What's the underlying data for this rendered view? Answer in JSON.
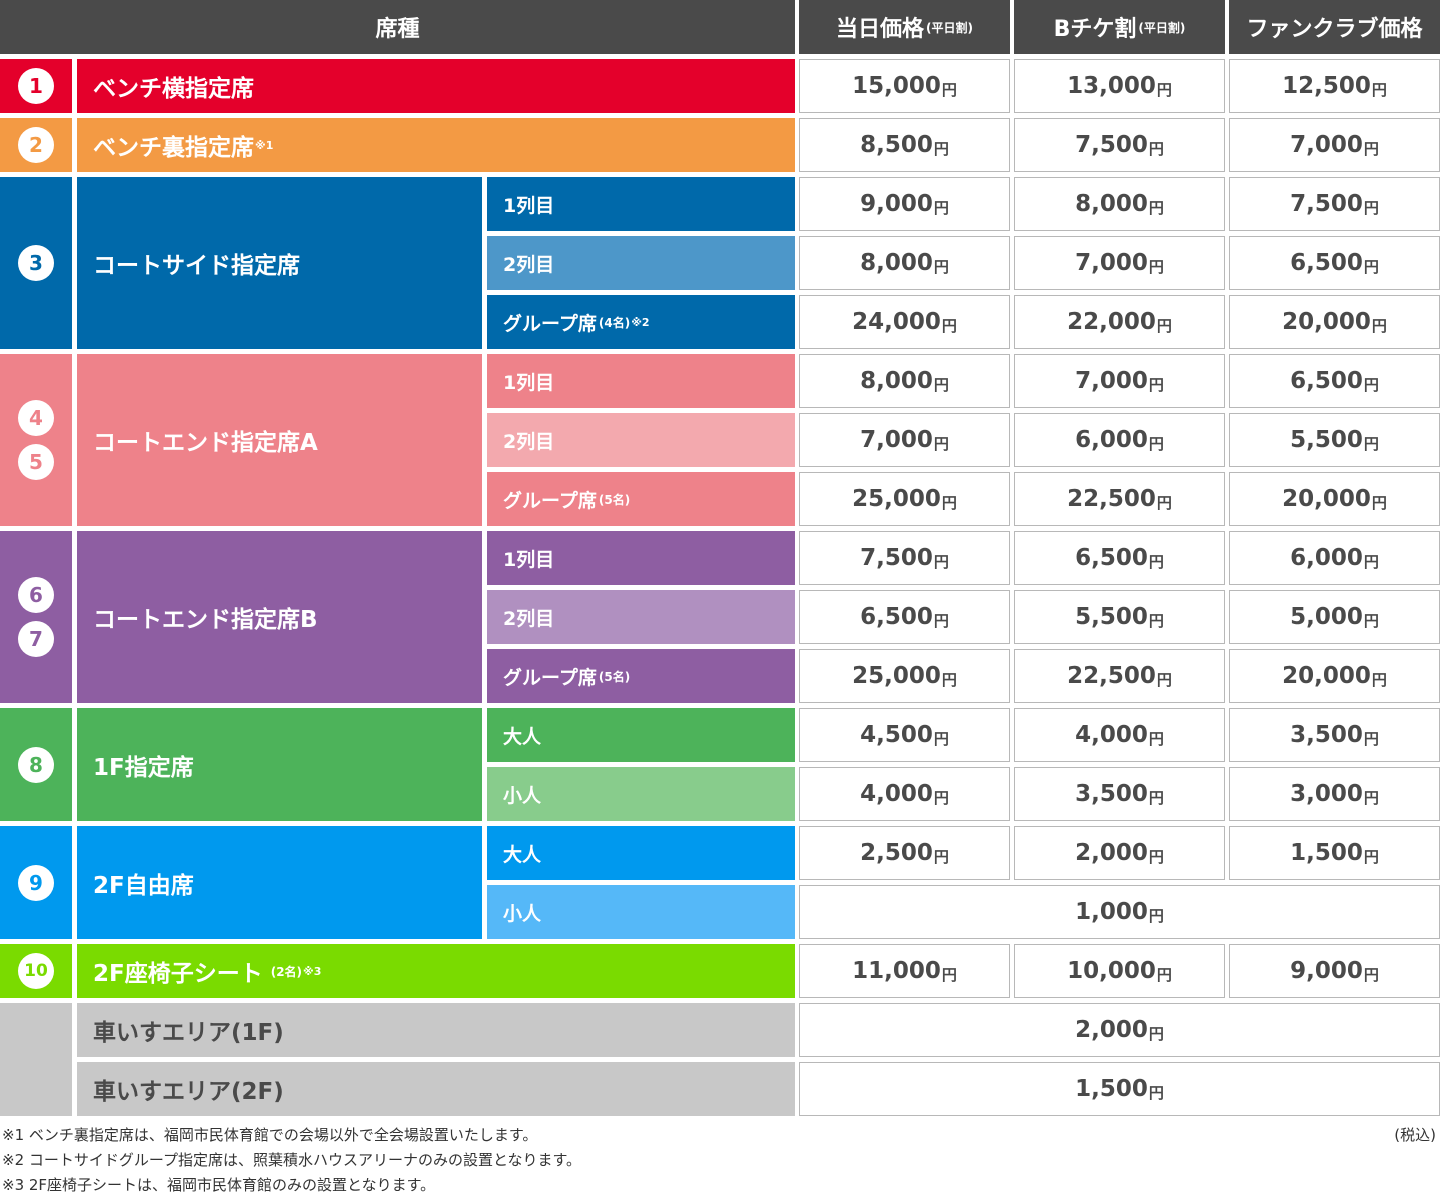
{
  "header": {
    "seat_type": "席種",
    "same_day": "当日価格",
    "same_day_note": "(平日割)",
    "bticket": "Bチケ割",
    "bticket_note": "(平日割)",
    "fanclub": "ファンクラブ価格"
  },
  "yen": "円",
  "colors": {
    "bench_side": "#e4002b",
    "bench_back": "#f39a44",
    "courtside": "#0069aa",
    "courtside_light": "#4d97c9",
    "end_a": "#ee828a",
    "end_a_light": "#f3a9ae",
    "end_b": "#8e5ea2",
    "end_b_light": "#b090c0",
    "f1": "#4db35a",
    "f1_light": "#88cc8c",
    "f2": "#0099ee",
    "f2_light": "#55b8f8",
    "chair": "#7adb00",
    "wheelchair": "#c8c8c8"
  },
  "rows": {
    "bench_side": {
      "num": "1",
      "label": "ベンチ横指定席",
      "prices": [
        "15,000",
        "13,000",
        "12,500"
      ]
    },
    "bench_back": {
      "num": "2",
      "label": "ベンチ裏指定席",
      "sup": "※1",
      "prices": [
        "8,500",
        "7,500",
        "7,000"
      ]
    },
    "courtside": {
      "num": "3",
      "label": "コートサイド指定席",
      "subs": [
        {
          "label": "1列目",
          "prices": [
            "9,000",
            "8,000",
            "7,500"
          ]
        },
        {
          "label": "2列目",
          "prices": [
            "8,000",
            "7,000",
            "6,500"
          ]
        },
        {
          "label": "グループ席",
          "note": "(4名)",
          "sup": "※2",
          "prices": [
            "24,000",
            "22,000",
            "20,000"
          ]
        }
      ]
    },
    "end_a": {
      "nums": [
        "4",
        "5"
      ],
      "label": "コートエンド指定席A",
      "subs": [
        {
          "label": "1列目",
          "prices": [
            "8,000",
            "7,000",
            "6,500"
          ]
        },
        {
          "label": "2列目",
          "prices": [
            "7,000",
            "6,000",
            "5,500"
          ]
        },
        {
          "label": "グループ席",
          "note": "(5名)",
          "prices": [
            "25,000",
            "22,500",
            "20,000"
          ]
        }
      ]
    },
    "end_b": {
      "nums": [
        "6",
        "7"
      ],
      "label": "コートエンド指定席B",
      "subs": [
        {
          "label": "1列目",
          "prices": [
            "7,500",
            "6,500",
            "6,000"
          ]
        },
        {
          "label": "2列目",
          "prices": [
            "6,500",
            "5,500",
            "5,000"
          ]
        },
        {
          "label": "グループ席",
          "note": "(5名)",
          "prices": [
            "25,000",
            "22,500",
            "20,000"
          ]
        }
      ]
    },
    "f1": {
      "num": "8",
      "label": "1F指定席",
      "subs": [
        {
          "label": "大人",
          "prices": [
            "4,500",
            "4,000",
            "3,500"
          ]
        },
        {
          "label": "小人",
          "prices": [
            "4,000",
            "3,500",
            "3,000"
          ]
        }
      ]
    },
    "f2": {
      "num": "9",
      "label": "2F自由席",
      "subs": [
        {
          "label": "大人",
          "prices": [
            "2,500",
            "2,000",
            "1,500"
          ]
        },
        {
          "label": "小人",
          "price_all": "1,000"
        }
      ]
    },
    "chair": {
      "num": "10",
      "label": "2F座椅子シート",
      "note": "(2名)",
      "sup": "※3",
      "prices": [
        "11,000",
        "10,000",
        "9,000"
      ]
    },
    "wheel_1f": {
      "label": "車いすエリア(1F)",
      "price_all": "2,000"
    },
    "wheel_2f": {
      "label": "車いすエリア(2F)",
      "price_all": "1,500"
    }
  },
  "notes": [
    "※1 ベンチ裏指定席は、福岡市民体育館での会場以外で全会場設置いたします。",
    "※2 コートサイドグループ指定席は、照葉積水ハウスアリーナのみの設置となります。",
    "※3 2F座椅子シートは、福岡市民体育館のみの設置となります。"
  ],
  "tax_note": "(税込)"
}
